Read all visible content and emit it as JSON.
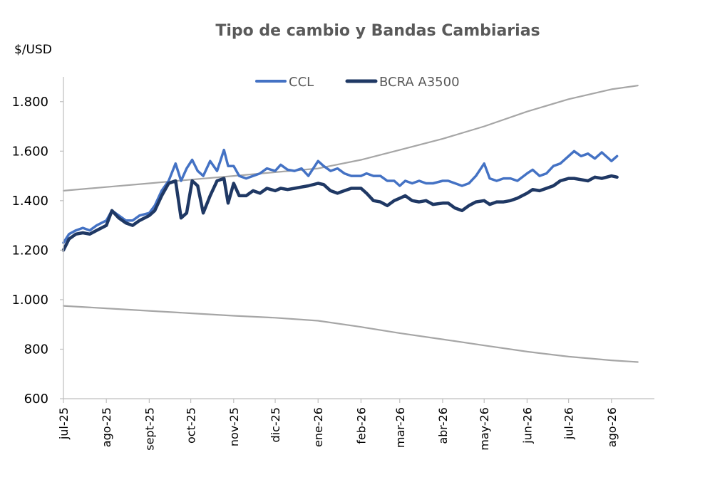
{
  "chart_data": {
    "type": "line",
    "title": "Tipo de cambio y Bandas Cambiarias",
    "ylabel": "$/USD",
    "ylim": [
      600,
      1900
    ],
    "yticks": [
      {
        "value": 600,
        "label": "600"
      },
      {
        "value": 800,
        "label": "800"
      },
      {
        "value": 1000,
        "label": "1.000"
      },
      {
        "value": 1200,
        "label": "1.200"
      },
      {
        "value": 1400,
        "label": "1.400"
      },
      {
        "value": 1600,
        "label": "1.600"
      },
      {
        "value": 1800,
        "label": "1.800"
      }
    ],
    "xticks": [
      {
        "date": "2025-07-01",
        "label": "jul-25"
      },
      {
        "date": "2025-08-01",
        "label": "ago-25"
      },
      {
        "date": "2025-09-01",
        "label": "sept-25"
      },
      {
        "date": "2025-10-01",
        "label": "oct-25"
      },
      {
        "date": "2025-11-01",
        "label": "nov-25"
      },
      {
        "date": "2025-12-01",
        "label": "dic-25"
      },
      {
        "date": "2026-01-01",
        "label": "ene-26"
      },
      {
        "date": "2026-02-01",
        "label": "feb-26"
      },
      {
        "date": "2026-03-01",
        "label": "mar-26"
      },
      {
        "date": "2026-04-01",
        "label": "abr-26"
      },
      {
        "date": "2026-05-01",
        "label": "may-26"
      },
      {
        "date": "2026-06-01",
        "label": "jun-26"
      },
      {
        "date": "2026-07-01",
        "label": "jul-26"
      },
      {
        "date": "2026-08-01",
        "label": "ago-26"
      }
    ],
    "legend_position": "top-center",
    "grid": false,
    "series": [
      {
        "name": "CCL",
        "color": "#4472c4",
        "points": [
          [
            "2025-07-01",
            1230
          ],
          [
            "2025-07-05",
            1265
          ],
          [
            "2025-07-10",
            1280
          ],
          [
            "2025-07-15",
            1290
          ],
          [
            "2025-07-20",
            1280
          ],
          [
            "2025-07-25",
            1300
          ],
          [
            "2025-08-01",
            1320
          ],
          [
            "2025-08-05",
            1360
          ],
          [
            "2025-08-10",
            1340
          ],
          [
            "2025-08-15",
            1320
          ],
          [
            "2025-08-20",
            1320
          ],
          [
            "2025-08-25",
            1340
          ],
          [
            "2025-09-01",
            1350
          ],
          [
            "2025-09-05",
            1380
          ],
          [
            "2025-09-10",
            1440
          ],
          [
            "2025-09-15",
            1480
          ],
          [
            "2025-09-20",
            1550
          ],
          [
            "2025-09-24",
            1480
          ],
          [
            "2025-09-28",
            1530
          ],
          [
            "2025-10-02",
            1565
          ],
          [
            "2025-10-06",
            1520
          ],
          [
            "2025-10-10",
            1500
          ],
          [
            "2025-10-15",
            1560
          ],
          [
            "2025-10-20",
            1520
          ],
          [
            "2025-10-25",
            1605
          ],
          [
            "2025-10-28",
            1540
          ],
          [
            "2025-11-01",
            1540
          ],
          [
            "2025-11-05",
            1500
          ],
          [
            "2025-11-10",
            1490
          ],
          [
            "2025-11-15",
            1500
          ],
          [
            "2025-11-20",
            1510
          ],
          [
            "2025-11-25",
            1530
          ],
          [
            "2025-12-01",
            1520
          ],
          [
            "2025-12-05",
            1545
          ],
          [
            "2025-12-10",
            1525
          ],
          [
            "2025-12-15",
            1520
          ],
          [
            "2025-12-20",
            1530
          ],
          [
            "2025-12-25",
            1500
          ],
          [
            "2026-01-01",
            1560
          ],
          [
            "2026-01-05",
            1540
          ],
          [
            "2026-01-10",
            1520
          ],
          [
            "2026-01-15",
            1530
          ],
          [
            "2026-01-20",
            1510
          ],
          [
            "2026-01-25",
            1500
          ],
          [
            "2026-02-01",
            1500
          ],
          [
            "2026-02-05",
            1510
          ],
          [
            "2026-02-10",
            1500
          ],
          [
            "2026-02-15",
            1500
          ],
          [
            "2026-02-20",
            1480
          ],
          [
            "2026-02-25",
            1480
          ],
          [
            "2026-03-01",
            1460
          ],
          [
            "2026-03-05",
            1480
          ],
          [
            "2026-03-10",
            1470
          ],
          [
            "2026-03-15",
            1480
          ],
          [
            "2026-03-20",
            1470
          ],
          [
            "2026-03-25",
            1470
          ],
          [
            "2026-04-01",
            1480
          ],
          [
            "2026-04-05",
            1480
          ],
          [
            "2026-04-10",
            1470
          ],
          [
            "2026-04-15",
            1460
          ],
          [
            "2026-04-20",
            1470
          ],
          [
            "2026-04-25",
            1500
          ],
          [
            "2026-05-01",
            1550
          ],
          [
            "2026-05-05",
            1490
          ],
          [
            "2026-05-10",
            1480
          ],
          [
            "2026-05-15",
            1490
          ],
          [
            "2026-05-20",
            1490
          ],
          [
            "2026-05-25",
            1480
          ],
          [
            "2026-06-01",
            1510
          ],
          [
            "2026-06-05",
            1525
          ],
          [
            "2026-06-10",
            1500
          ],
          [
            "2026-06-15",
            1510
          ],
          [
            "2026-06-20",
            1540
          ],
          [
            "2026-06-25",
            1550
          ],
          [
            "2026-07-01",
            1580
          ],
          [
            "2026-07-05",
            1600
          ],
          [
            "2026-07-10",
            1580
          ],
          [
            "2026-07-15",
            1590
          ],
          [
            "2026-07-20",
            1570
          ],
          [
            "2026-07-25",
            1595
          ],
          [
            "2026-08-01",
            1560
          ],
          [
            "2026-08-05",
            1580
          ]
        ]
      },
      {
        "name": "BCRA A3500",
        "color": "#1f3864",
        "points": [
          [
            "2025-07-01",
            1200
          ],
          [
            "2025-07-05",
            1245
          ],
          [
            "2025-07-10",
            1265
          ],
          [
            "2025-07-15",
            1270
          ],
          [
            "2025-07-20",
            1265
          ],
          [
            "2025-07-25",
            1280
          ],
          [
            "2025-08-01",
            1300
          ],
          [
            "2025-08-05",
            1360
          ],
          [
            "2025-08-10",
            1330
          ],
          [
            "2025-08-15",
            1310
          ],
          [
            "2025-08-20",
            1300
          ],
          [
            "2025-08-25",
            1320
          ],
          [
            "2025-09-01",
            1340
          ],
          [
            "2025-09-05",
            1360
          ],
          [
            "2025-09-10",
            1420
          ],
          [
            "2025-09-15",
            1470
          ],
          [
            "2025-09-20",
            1480
          ],
          [
            "2025-09-24",
            1330
          ],
          [
            "2025-09-28",
            1350
          ],
          [
            "2025-10-02",
            1480
          ],
          [
            "2025-10-06",
            1460
          ],
          [
            "2025-10-10",
            1350
          ],
          [
            "2025-10-15",
            1420
          ],
          [
            "2025-10-20",
            1480
          ],
          [
            "2025-10-25",
            1490
          ],
          [
            "2025-10-28",
            1390
          ],
          [
            "2025-11-01",
            1470
          ],
          [
            "2025-11-05",
            1420
          ],
          [
            "2025-11-10",
            1420
          ],
          [
            "2025-11-15",
            1440
          ],
          [
            "2025-11-20",
            1430
          ],
          [
            "2025-11-25",
            1450
          ],
          [
            "2025-12-01",
            1440
          ],
          [
            "2025-12-05",
            1450
          ],
          [
            "2025-12-10",
            1445
          ],
          [
            "2025-12-15",
            1450
          ],
          [
            "2025-12-20",
            1455
          ],
          [
            "2025-12-25",
            1460
          ],
          [
            "2026-01-01",
            1470
          ],
          [
            "2026-01-05",
            1465
          ],
          [
            "2026-01-10",
            1440
          ],
          [
            "2026-01-15",
            1430
          ],
          [
            "2026-01-20",
            1440
          ],
          [
            "2026-01-25",
            1450
          ],
          [
            "2026-02-01",
            1450
          ],
          [
            "2026-02-05",
            1430
          ],
          [
            "2026-02-10",
            1400
          ],
          [
            "2026-02-15",
            1395
          ],
          [
            "2026-02-20",
            1380
          ],
          [
            "2026-02-25",
            1400
          ],
          [
            "2026-03-01",
            1410
          ],
          [
            "2026-03-05",
            1420
          ],
          [
            "2026-03-10",
            1400
          ],
          [
            "2026-03-15",
            1395
          ],
          [
            "2026-03-20",
            1400
          ],
          [
            "2026-03-25",
            1385
          ],
          [
            "2026-04-01",
            1390
          ],
          [
            "2026-04-05",
            1390
          ],
          [
            "2026-04-10",
            1370
          ],
          [
            "2026-04-15",
            1360
          ],
          [
            "2026-04-20",
            1380
          ],
          [
            "2026-04-25",
            1395
          ],
          [
            "2026-05-01",
            1400
          ],
          [
            "2026-05-05",
            1385
          ],
          [
            "2026-05-10",
            1395
          ],
          [
            "2026-05-15",
            1395
          ],
          [
            "2026-05-20",
            1400
          ],
          [
            "2026-05-25",
            1410
          ],
          [
            "2026-06-01",
            1430
          ],
          [
            "2026-06-05",
            1445
          ],
          [
            "2026-06-10",
            1440
          ],
          [
            "2026-06-15",
            1450
          ],
          [
            "2026-06-20",
            1460
          ],
          [
            "2026-06-25",
            1480
          ],
          [
            "2026-07-01",
            1490
          ],
          [
            "2026-07-05",
            1490
          ],
          [
            "2026-07-10",
            1485
          ],
          [
            "2026-07-15",
            1480
          ],
          [
            "2026-07-20",
            1495
          ],
          [
            "2026-07-25",
            1490
          ],
          [
            "2026-08-01",
            1500
          ],
          [
            "2026-08-05",
            1495
          ]
        ]
      },
      {
        "color": "#a6a6a6",
        "points": [
          [
            "2025-07-01",
            1440
          ],
          [
            "2025-08-01",
            1455
          ],
          [
            "2025-09-01",
            1470
          ],
          [
            "2025-10-01",
            1485
          ],
          [
            "2025-11-01",
            1500
          ],
          [
            "2025-12-01",
            1515
          ],
          [
            "2026-01-01",
            1530
          ],
          [
            "2026-02-01",
            1565
          ],
          [
            "2026-03-01",
            1605
          ],
          [
            "2026-04-01",
            1650
          ],
          [
            "2026-05-01",
            1700
          ],
          [
            "2026-06-01",
            1760
          ],
          [
            "2026-07-01",
            1810
          ],
          [
            "2026-08-01",
            1850
          ],
          [
            "2026-08-20",
            1865
          ]
        ]
      },
      {
        "color": "#a6a6a6",
        "points": [
          [
            "2025-07-01",
            975
          ],
          [
            "2025-08-01",
            965
          ],
          [
            "2025-09-01",
            955
          ],
          [
            "2025-10-01",
            945
          ],
          [
            "2025-11-01",
            935
          ],
          [
            "2025-12-01",
            927
          ],
          [
            "2026-01-01",
            915
          ],
          [
            "2026-02-01",
            890
          ],
          [
            "2026-03-01",
            865
          ],
          [
            "2026-04-01",
            840
          ],
          [
            "2026-05-01",
            815
          ],
          [
            "2026-06-01",
            790
          ],
          [
            "2026-07-01",
            770
          ],
          [
            "2026-08-01",
            755
          ],
          [
            "2026-08-20",
            748
          ]
        ]
      }
    ]
  }
}
